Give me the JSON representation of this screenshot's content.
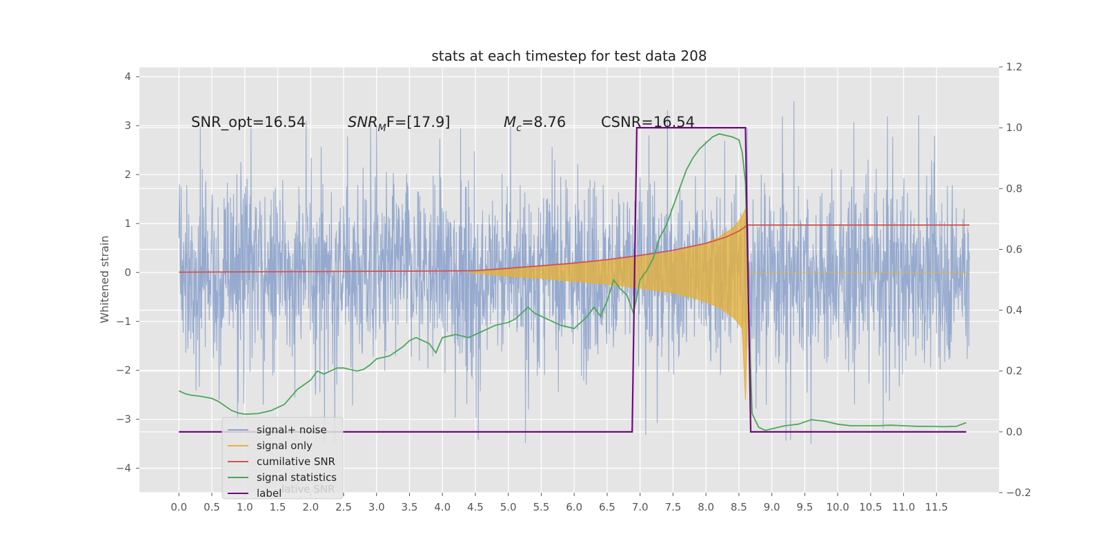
{
  "chart_data": {
    "type": "line",
    "title": "stats at each timestep for test data 208",
    "xlabel": "",
    "ylabel": "Whitened strain",
    "xlim": [
      -0.6,
      12.45
    ],
    "ylim": [
      -4.5,
      4.2
    ],
    "ylim_right": [
      -0.2,
      1.2
    ],
    "x_ticks": [
      "0.0",
      "0.5",
      "1.0",
      "1.5",
      "2.0",
      "2.5",
      "3.0",
      "3.5",
      "4.0",
      "4.5",
      "5.0",
      "5.5",
      "6.0",
      "6.5",
      "7.0",
      "7.5",
      "8.0",
      "8.5",
      "9.0",
      "9.5",
      "10.0",
      "10.5",
      "11.0",
      "11.5"
    ],
    "y_ticks_left": [
      "4",
      "3",
      "2",
      "1",
      "0",
      "−1",
      "−2",
      "−3",
      "−4"
    ],
    "y_ticks_right": [
      "1.2",
      "1.0",
      "0.8",
      "0.6",
      "0.4",
      "0.2",
      "0.0",
      "−0.2"
    ],
    "grid": true,
    "legend_location": "lower-left",
    "annotations": {
      "snr_opt": "SNR_opt=16.54",
      "snr_mf_italic": "SNR",
      "snr_mf_sub": "M",
      "snr_mf_rest": "F=[17.9]",
      "mc_italic": "M",
      "mc_sub": "c",
      "mc_rest": "=8.76",
      "csnr": "CSNR=16.54"
    },
    "colors": {
      "signal_noise": "#8da3cc",
      "signal_only": "#e6b13a",
      "cumulative_snr": "#d2524e",
      "signal_statistics": "#4aa65a",
      "label": "#6e0a7a"
    },
    "series": [
      {
        "name": "signal+ noise",
        "axis": "left",
        "kind": "noise_band",
        "x_range": [
          0.0,
          12.0
        ],
        "typical_envelope": 1.7,
        "peak_values": [
          3.6,
          3.3,
          3.7,
          3.5,
          3.8,
          -3.5,
          3.05,
          -3.4
        ]
      },
      {
        "name": "signal only",
        "axis": "left",
        "kind": "chirp_envelope",
        "x": [
          4.4,
          5.0,
          5.5,
          6.0,
          6.5,
          7.0,
          7.5,
          7.8,
          8.0,
          8.2,
          8.4,
          8.5,
          8.55,
          8.6,
          8.65,
          12.0
        ],
        "upper": [
          0.0,
          0.08,
          0.12,
          0.18,
          0.24,
          0.32,
          0.42,
          0.52,
          0.6,
          0.72,
          0.9,
          1.05,
          1.15,
          1.3,
          0.0,
          0.0
        ],
        "lower": [
          0.0,
          -0.08,
          -0.12,
          -0.18,
          -0.24,
          -0.32,
          -0.42,
          -0.52,
          -0.6,
          -0.72,
          -0.9,
          -1.05,
          -1.15,
          -2.6,
          0.0,
          0.0
        ]
      },
      {
        "name": "cumilative SNR",
        "axis": "right",
        "x": [
          0.0,
          1.0,
          2.0,
          3.0,
          4.0,
          4.5,
          5.0,
          5.5,
          6.0,
          6.5,
          7.0,
          7.5,
          8.0,
          8.3,
          8.5,
          8.6,
          8.62,
          12.0
        ],
        "values": [
          0.525,
          0.526,
          0.527,
          0.528,
          0.529,
          0.53,
          0.538,
          0.546,
          0.555,
          0.566,
          0.58,
          0.597,
          0.62,
          0.64,
          0.66,
          0.675,
          0.68,
          0.68
        ]
      },
      {
        "name": "signal statistics",
        "axis": "right",
        "x": [
          0.0,
          0.1,
          0.2,
          0.3,
          0.4,
          0.5,
          0.6,
          0.7,
          0.8,
          0.9,
          1.0,
          1.2,
          1.4,
          1.6,
          1.8,
          2.0,
          2.1,
          2.2,
          2.3,
          2.4,
          2.5,
          2.6,
          2.7,
          2.8,
          2.9,
          3.0,
          3.2,
          3.4,
          3.5,
          3.6,
          3.8,
          3.9,
          4.0,
          4.2,
          4.4,
          4.6,
          4.8,
          5.0,
          5.1,
          5.2,
          5.3,
          5.4,
          5.6,
          5.8,
          6.0,
          6.2,
          6.3,
          6.4,
          6.5,
          6.6,
          6.7,
          6.8,
          6.9,
          7.0,
          7.1,
          7.2,
          7.3,
          7.4,
          7.5,
          7.6,
          7.7,
          7.8,
          7.9,
          8.0,
          8.1,
          8.2,
          8.3,
          8.4,
          8.5,
          8.55,
          8.6,
          8.65,
          8.7,
          8.8,
          8.9,
          9.0,
          9.2,
          9.4,
          9.6,
          9.8,
          10.0,
          10.2,
          10.4,
          10.6,
          10.8,
          11.0,
          11.2,
          11.4,
          11.6,
          11.8,
          11.95
        ],
        "values": [
          0.135,
          0.125,
          0.12,
          0.118,
          0.114,
          0.11,
          0.1,
          0.085,
          0.07,
          0.062,
          0.058,
          0.06,
          0.07,
          0.09,
          0.14,
          0.17,
          0.2,
          0.19,
          0.2,
          0.21,
          0.21,
          0.205,
          0.2,
          0.205,
          0.22,
          0.24,
          0.25,
          0.28,
          0.3,
          0.31,
          0.29,
          0.26,
          0.31,
          0.32,
          0.31,
          0.33,
          0.35,
          0.36,
          0.37,
          0.39,
          0.41,
          0.39,
          0.37,
          0.35,
          0.34,
          0.38,
          0.41,
          0.38,
          0.43,
          0.5,
          0.47,
          0.45,
          0.39,
          0.5,
          0.53,
          0.57,
          0.64,
          0.68,
          0.74,
          0.8,
          0.86,
          0.9,
          0.93,
          0.95,
          0.97,
          0.98,
          0.975,
          0.97,
          0.96,
          0.92,
          0.82,
          0.4,
          0.06,
          0.015,
          0.005,
          0.01,
          0.02,
          0.025,
          0.04,
          0.035,
          0.025,
          0.02,
          0.02,
          0.02,
          0.022,
          0.02,
          0.018,
          0.018,
          0.017,
          0.018,
          0.03
        ]
      },
      {
        "name": "label",
        "axis": "right",
        "x": [
          0.0,
          6.88,
          6.95,
          8.6,
          8.68,
          11.95
        ],
        "values": [
          0.0,
          0.0,
          1.0,
          1.0,
          0.0,
          0.0
        ]
      }
    ],
    "legend": [
      {
        "label": "signal+ noise",
        "key": "signal_noise"
      },
      {
        "label": "signal only",
        "key": "signal_only"
      },
      {
        "label": "cumilative SNR",
        "key": "cumulative_snr"
      },
      {
        "label": "signal statistics",
        "key": "signal_statistics"
      },
      {
        "label": "label",
        "key": "label"
      }
    ],
    "legend_ghost_text": "lative SNR"
  }
}
